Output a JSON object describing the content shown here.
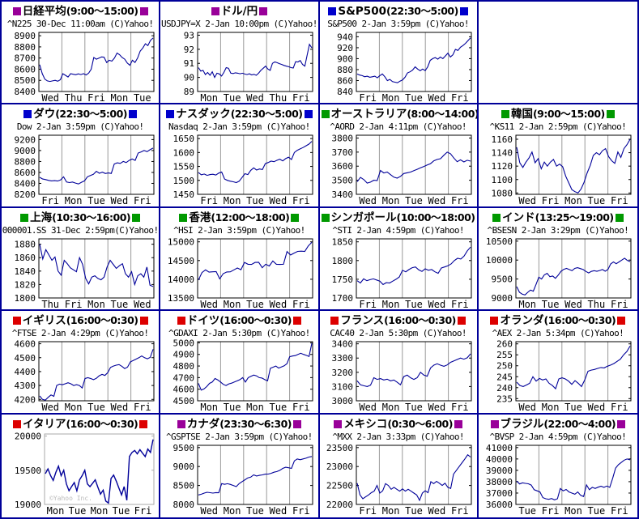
{
  "colors": {
    "purple": "#990099",
    "blue": "#0000CC",
    "green": "#009900",
    "red": "#DD0000",
    "line": "#000099",
    "grid": "#999999",
    "plot_border": "#000000",
    "plot_border_alt": "#AAAAAA",
    "frame": "#000099"
  },
  "watermark": "©Yahoo Inc.",
  "charts": [
    {
      "id": "n225",
      "title": "日経平均",
      "time_range": "(9:00〜15:00)",
      "marker": "purple",
      "subtitle": "^N225 30-Dec 11:00am (C)Yahoo!",
      "y_ticks": [
        8900,
        8800,
        8700,
        8600,
        8500,
        8400
      ],
      "x_labels": [
        "Wed",
        "Thu",
        "Fri",
        "Mon",
        "Tue"
      ],
      "ylim": [
        8400,
        8930
      ],
      "values": [
        8640,
        8560,
        8510,
        8495,
        8490,
        8495,
        8500,
        8492,
        8505,
        8560,
        8545,
        8530,
        8560,
        8555,
        8550,
        8558,
        8552,
        8560,
        8548,
        8565,
        8600,
        8705,
        8690,
        8700,
        8710,
        8708,
        8660,
        8680,
        8672,
        8700,
        8745,
        8730,
        8705,
        8690,
        8655,
        8635,
        8680,
        8660,
        8700,
        8762,
        8790,
        8828,
        8812,
        8858,
        8880
      ]
    },
    {
      "id": "usdjpy",
      "title": "ドル/円",
      "time_range": "",
      "marker": "purple",
      "subtitle": "USDJPY=X 2-Jan 10:00pm (C)Yahoo!",
      "y_ticks": [
        93,
        92,
        91,
        90,
        89
      ],
      "x_labels": [
        "Mon",
        "Tue",
        "Wed",
        "Thu",
        "Fri"
      ],
      "ylim": [
        89,
        93.2
      ],
      "values": [
        90.7,
        90.45,
        90.5,
        90.2,
        90.35,
        90.15,
        90.4,
        90.0,
        90.3,
        90.25,
        90.1,
        90.35,
        90.7,
        90.65,
        90.3,
        90.28,
        90.33,
        90.3,
        90.26,
        90.3,
        90.24,
        90.2,
        90.26,
        90.18,
        90.22,
        90.15,
        90.3,
        90.5,
        90.65,
        90.8,
        90.6,
        90.5,
        91.0,
        91.1,
        91.05,
        90.98,
        90.92,
        90.85,
        90.8,
        90.76,
        90.7,
        90.67,
        91.12,
        91.1,
        91.2,
        90.92,
        90.8,
        91.6,
        92.35,
        92.1
      ]
    },
    {
      "id": "sp500",
      "title": "S&P500",
      "time_range": "(22:30〜5:00)",
      "marker": "blue",
      "subtitle": "S&P500 2-Jan 3:59pm (C)Yahoo!",
      "y_ticks": [
        940,
        920,
        900,
        880,
        860,
        840
      ],
      "x_labels": [
        "Fri",
        "Mon",
        "Tue",
        "Wed",
        "Fri"
      ],
      "ylim": [
        840,
        948
      ],
      "values": [
        872,
        870,
        869,
        867,
        868,
        866,
        867,
        868,
        865,
        869,
        872,
        867,
        860,
        862,
        858,
        857,
        856,
        859,
        861,
        866,
        874,
        876,
        879,
        885,
        881,
        878,
        881,
        878,
        885,
        897,
        900,
        902,
        899,
        903,
        900,
        905,
        910,
        903,
        907,
        917,
        915,
        921,
        924,
        928,
        933,
        938
      ]
    },
    {
      "id": "empty",
      "empty": true
    },
    {
      "id": "dow",
      "title": "ダウ",
      "time_range": "(22:30〜5:00)",
      "marker": "blue",
      "subtitle": "Dow 2-Jan 3:59pm (C)Yahoo!",
      "y_ticks": [
        9200,
        9000,
        8800,
        8600,
        8400,
        8200
      ],
      "x_labels": [
        "Fri",
        "Mon",
        "Tue",
        "Wed",
        "Fri"
      ],
      "ylim": [
        8200,
        9280
      ],
      "values": [
        8510,
        8480,
        8470,
        8455,
        8445,
        8450,
        8442,
        8462,
        8520,
        8425,
        8415,
        8425,
        8405,
        8390,
        8420,
        8445,
        8520,
        8545,
        8565,
        8620,
        8585,
        8605,
        8580,
        8590,
        8582,
        8755,
        8775,
        8765,
        8800,
        8780,
        8820,
        8845,
        8820,
        8955,
        8975,
        9000,
        8980,
        9015,
        9045
      ]
    },
    {
      "id": "nasdaq",
      "title": "ナスダック",
      "time_range": "(22:30〜5:00)",
      "marker": "blue",
      "subtitle": "Nasdaq 2-Jan 3:59pm (C)Yahoo!",
      "y_ticks": [
        1650,
        1600,
        1550,
        1500,
        1450
      ],
      "x_labels": [
        "Fri",
        "Mon",
        "Tue",
        "Wed",
        "Fri"
      ],
      "ylim": [
        1450,
        1662
      ],
      "values": [
        1528,
        1520,
        1523,
        1518,
        1521,
        1522,
        1519,
        1526,
        1530,
        1505,
        1500,
        1497,
        1495,
        1492,
        1497,
        1510,
        1524,
        1521,
        1536,
        1545,
        1537,
        1541,
        1539,
        1560,
        1564,
        1569,
        1567,
        1572,
        1576,
        1570,
        1578,
        1583,
        1575,
        1600,
        1608,
        1613,
        1618,
        1624,
        1630,
        1640
      ]
    },
    {
      "id": "aord",
      "title": "オーストラリア",
      "time_range": "(8:00〜14:00)",
      "marker": "green",
      "subtitle": "^AORD 2-Jan 4:11pm (C)Yahoo!",
      "y_ticks": [
        3800,
        3700,
        3600,
        3500,
        3400
      ],
      "x_labels": [
        "Wed",
        "Mon",
        "Tue",
        "Wed",
        "Fri"
      ],
      "ylim": [
        3400,
        3820
      ],
      "values": [
        3490,
        3520,
        3505,
        3480,
        3487,
        3500,
        3498,
        3570,
        3552,
        3558,
        3540,
        3522,
        3515,
        3528,
        3548,
        3553,
        3558,
        3568,
        3578,
        3588,
        3598,
        3608,
        3618,
        3638,
        3648,
        3653,
        3678,
        3700,
        3688,
        3658,
        3632,
        3645,
        3630,
        3642,
        3636
      ]
    },
    {
      "id": "ks11",
      "title": "韓国",
      "time_range": "(9:00〜15:00)",
      "marker": "green",
      "subtitle": "^KS11 2-Jan 2:59pm (C)Yahoo!",
      "y_ticks": [
        1160,
        1140,
        1120,
        1100,
        1080
      ],
      "x_labels": [
        "Wed",
        "Fri",
        "Mon",
        "Tue",
        "Fri"
      ],
      "ylim": [
        1078,
        1166
      ],
      "values": [
        1148,
        1125,
        1118,
        1126,
        1132,
        1141,
        1125,
        1131,
        1116,
        1126,
        1120,
        1126,
        1130,
        1120,
        1123,
        1119,
        1105,
        1095,
        1085,
        1082,
        1080,
        1086,
        1096,
        1110,
        1121,
        1136,
        1140,
        1137,
        1143,
        1146,
        1134,
        1128,
        1124,
        1141,
        1133,
        1146,
        1152,
        1160
      ]
    },
    {
      "id": "shanghai",
      "title": "上海",
      "time_range": "(10:30〜16:00)",
      "marker": "green",
      "subtitle": "000001.SS 31-Dec 2:59pm(C)Yahoo!",
      "y_ticks": [
        1880,
        1860,
        1840,
        1820,
        1800
      ],
      "x_labels": [
        "Thu",
        "Fri",
        "Mon",
        "Tue",
        "Wed"
      ],
      "ylim": [
        1800,
        1888
      ],
      "values": [
        1880,
        1858,
        1872,
        1864,
        1856,
        1861,
        1840,
        1834,
        1856,
        1851,
        1845,
        1842,
        1839,
        1860,
        1850,
        1829,
        1821,
        1831,
        1833,
        1829,
        1827,
        1831,
        1846,
        1856,
        1850,
        1844,
        1848,
        1851,
        1836,
        1831,
        1839,
        1820,
        1833,
        1836,
        1831,
        1846,
        1819,
        1817
      ]
    },
    {
      "id": "hsi",
      "title": "香港",
      "time_range": "(12:00〜18:00)",
      "marker": "green",
      "subtitle": "^HSI 2-Jan 3:59pm (C)Yahoo!",
      "y_ticks": [
        15000,
        14500,
        14000,
        13500
      ],
      "x_labels": [
        "Wed",
        "Mon",
        "Tue",
        "Wed",
        "Fri"
      ],
      "ylim": [
        13500,
        15080
      ],
      "values": [
        13980,
        14180,
        14250,
        14190,
        14200,
        14205,
        14010,
        14150,
        14195,
        14200,
        14250,
        14300,
        14255,
        14450,
        14400,
        14395,
        14450,
        14455,
        14310,
        14400,
        14355,
        14490,
        14400,
        14395,
        14400,
        14740,
        14650,
        14700,
        14745,
        14750,
        14745,
        14890,
        14990
      ]
    },
    {
      "id": "sti",
      "title": "シンガポール",
      "time_range": "(10:00〜18:00)",
      "marker": "green",
      "subtitle": "^STI 2-Jan 4:59pm (C)Yahoo!",
      "y_ticks": [
        1850,
        1800,
        1750,
        1700
      ],
      "x_labels": [
        "Fri",
        "Mon",
        "Tue",
        "Wed",
        "Fri"
      ],
      "ylim": [
        1700,
        1858
      ],
      "values": [
        1746,
        1740,
        1751,
        1746,
        1749,
        1751,
        1748,
        1745,
        1736,
        1741,
        1740,
        1745,
        1750,
        1756,
        1774,
        1770,
        1776,
        1781,
        1783,
        1775,
        1771,
        1778,
        1774,
        1776,
        1770,
        1766,
        1780,
        1783,
        1786,
        1791,
        1800,
        1806,
        1804,
        1812,
        1826,
        1836
      ]
    },
    {
      "id": "bsesn",
      "title": "インド",
      "time_range": "(13:25〜19:00)",
      "marker": "green",
      "subtitle": "^BSESN 2-Jan 3:29pm (C)Yahoo!",
      "y_ticks": [
        10500,
        10000,
        9500,
        9000
      ],
      "x_labels": [
        "Mon",
        "Tue",
        "Wed",
        "Thu",
        "Fri"
      ],
      "ylim": [
        9000,
        10560
      ],
      "values": [
        9300,
        9150,
        9100,
        9080,
        9150,
        9210,
        9180,
        9360,
        9550,
        9500,
        9610,
        9650,
        9560,
        9580,
        9520,
        9600,
        9700,
        9755,
        9780,
        9750,
        9720,
        9780,
        9800,
        9775,
        9750,
        9700,
        9660,
        9700,
        9720,
        9705,
        9725,
        9750,
        9705,
        9755,
        9900,
        9950,
        9905,
        9950,
        10000,
        10050,
        9990,
        9960
      ]
    },
    {
      "id": "ftse",
      "title": "イギリス",
      "time_range": "(16:00〜0:30)",
      "marker": "red",
      "subtitle": "^FTSE 2-Jan 4:29pm (C)Yahoo!",
      "y_ticks": [
        4600,
        4500,
        4400,
        4300,
        4200
      ],
      "x_labels": [
        "Wed",
        "Mon",
        "Tue",
        "Wed",
        "Fri"
      ],
      "ylim": [
        4190,
        4615
      ],
      "values": [
        4225,
        4200,
        4195,
        4215,
        4232,
        4222,
        4300,
        4310,
        4305,
        4312,
        4320,
        4312,
        4300,
        4306,
        4300,
        4282,
        4350,
        4356,
        4350,
        4342,
        4352,
        4370,
        4380,
        4372,
        4392,
        4430,
        4440,
        4446,
        4450,
        4438,
        4422,
        4432,
        4470,
        4480,
        4490,
        4500,
        4512,
        4500,
        4492,
        4502,
        4560
      ]
    },
    {
      "id": "gdaxi",
      "title": "ドイツ",
      "time_range": "(16:00〜0:30)",
      "marker": "red",
      "subtitle": "^GDAXI 2-Jan 5:30pm (C)Yahoo!",
      "y_ticks": [
        5000,
        4900,
        4800,
        4700,
        4600,
        4500
      ],
      "x_labels": [
        "Mon",
        "Tue",
        "Mon",
        "Tue",
        "Fri"
      ],
      "ylim": [
        4500,
        5010
      ],
      "values": [
        4650,
        4592,
        4602,
        4622,
        4650,
        4662,
        4692,
        4680,
        4662,
        4642,
        4632,
        4646,
        4652,
        4662,
        4672,
        4682,
        4700,
        4662,
        4700,
        4712,
        4722,
        4715,
        4700,
        4696,
        4682,
        4672,
        4780,
        4790,
        4800,
        4782,
        4792,
        4802,
        4820,
        4880,
        4886,
        4890,
        4900,
        4910,
        4900,
        4892,
        4882,
        4995
      ]
    },
    {
      "id": "cac40",
      "title": "フランス",
      "time_range": "(16:00〜0:30)",
      "marker": "red",
      "subtitle": "CAC40 2-Jan 5:30pm (C)Yahoo!",
      "y_ticks": [
        3400,
        3300,
        3200,
        3100,
        3000
      ],
      "x_labels": [
        "Wed",
        "Mon",
        "Tue",
        "Wed",
        "Fri"
      ],
      "ylim": [
        3000,
        3415
      ],
      "values": [
        3140,
        3112,
        3106,
        3100,
        3110,
        3162,
        3150,
        3156,
        3146,
        3152,
        3140,
        3146,
        3130,
        3112,
        3170,
        3180,
        3162,
        3150,
        3162,
        3200,
        3180,
        3172,
        3230,
        3250,
        3260,
        3250,
        3242,
        3252,
        3270,
        3280,
        3290,
        3300,
        3292,
        3302,
        3330
      ]
    },
    {
      "id": "aex",
      "title": "オランダ",
      "time_range": "(16:00〜0:30)",
      "marker": "red",
      "subtitle": "^AEX 2-Jan 5:34pm (C)Yahoo!",
      "y_ticks": [
        260,
        255,
        250,
        245,
        240,
        235
      ],
      "x_labels": [
        "Wed",
        "Mon",
        "Tue",
        "Wed",
        "Fri"
      ],
      "ylim": [
        234,
        261
      ],
      "values": [
        242.5,
        241,
        240.5,
        241.2,
        242,
        245,
        243,
        244.2,
        243.5,
        244,
        242,
        241,
        239.5,
        244,
        244.5,
        244,
        243,
        241.5,
        243.2,
        242,
        240.5,
        243.5,
        247.5,
        248,
        248.3,
        248.8,
        249.2,
        249,
        249.8,
        250.3,
        251,
        252,
        253,
        255,
        256.5,
        259
      ]
    },
    {
      "id": "mib",
      "title": "イタリア",
      "time_range": "(16:00〜0:30)",
      "marker": "red",
      "subtitle": "",
      "style": "alt",
      "watermark": "©Yahoo Inc.",
      "y_ticks": [
        20000,
        19500,
        19000
      ],
      "x_labels": [
        "Mon",
        "Tue",
        "Mon",
        "Tue",
        "Fri"
      ],
      "ylim": [
        19000,
        20030
      ],
      "values": [
        19450,
        19520,
        19420,
        19350,
        19470,
        19560,
        19420,
        19500,
        19300,
        19200,
        19260,
        19320,
        19200,
        19360,
        19420,
        19500,
        19300,
        19260,
        19310,
        19360,
        19250,
        19150,
        19210,
        19050,
        19020,
        19380,
        19430,
        19340,
        19240,
        19140,
        19260,
        19060,
        19700,
        19760,
        19790,
        19740,
        19800,
        19750,
        19700,
        19810,
        19760,
        19950
      ]
    },
    {
      "id": "gsptse",
      "title": "カナダ",
      "time_range": "(23:30〜6:30)",
      "marker": "purple",
      "subtitle": "^GSPTSE 2-Jan 3:59pm (C)Yahoo!",
      "y_ticks": [
        9500,
        9000,
        8500,
        8000
      ],
      "x_labels": [
        "Wed",
        "Mon",
        "Tue",
        "Wed",
        "Fri"
      ],
      "ylim": [
        8000,
        9560
      ],
      "values": [
        8250,
        8270,
        8300,
        8320,
        8310,
        8300,
        8312,
        8308,
        8550,
        8530,
        8548,
        8528,
        8500,
        8470,
        8550,
        8600,
        8650,
        8700,
        8720,
        8780,
        8750,
        8768,
        8780,
        8800,
        8802,
        8820,
        8850,
        8868,
        8900,
        8950,
        8980,
        8968,
        8952,
        9150,
        9200,
        9180,
        9200,
        9220,
        9250,
        9265
      ]
    },
    {
      "id": "mxx",
      "title": "メキシコ",
      "time_range": "(0:30〜6:00)",
      "marker": "purple",
      "subtitle": "^MXX 2-Jan 3:33pm (C)Yahoo!",
      "y_ticks": [
        23500,
        23000,
        22500,
        22000
      ],
      "x_labels": [
        "Fri",
        "Mon",
        "Tue",
        "Wed",
        "Fri"
      ],
      "ylim": [
        22000,
        23560
      ],
      "values": [
        22560,
        22250,
        22150,
        22200,
        22250,
        22310,
        22350,
        22500,
        22300,
        22360,
        22550,
        22500,
        22400,
        22450,
        22400,
        22350,
        22410,
        22350,
        22400,
        22350,
        22300,
        22250,
        22110,
        22300,
        22360,
        22310,
        22600,
        22550,
        22610,
        22560,
        22500,
        22560,
        22450,
        22420,
        22800,
        22900,
        23000,
        23100,
        23200,
        23310,
        23250
      ]
    },
    {
      "id": "bvsp",
      "title": "ブラジル",
      "time_range": "(22:00〜4:00)",
      "marker": "purple",
      "subtitle": "^BVSP 2-Jan 4:59pm (C)Yahoo!",
      "y_ticks": [
        41000,
        40000,
        39000,
        38000,
        37000,
        36000
      ],
      "x_labels": [
        "Tue",
        "Fri",
        "Mon",
        "Tue",
        "Fri"
      ],
      "ylim": [
        36000,
        41200
      ],
      "values": [
        38050,
        37800,
        37900,
        37850,
        37820,
        37700,
        37300,
        37200,
        37100,
        36600,
        36500,
        36450,
        36520,
        36400,
        36500,
        37400,
        37200,
        37320,
        37100,
        37000,
        36900,
        37100,
        36800,
        36700,
        37720,
        37300,
        37500,
        37400,
        37520,
        37600,
        37500,
        37620,
        37500,
        38300,
        39200,
        39500,
        39700,
        39900,
        40000,
        39920
      ]
    }
  ],
  "chart_data": {
    "type": "line",
    "note": "20-panel world stock market mini-chart grid (Yahoo! Japan finance style); see charts[] for per-panel series, y_ticks, x_labels and ylim."
  }
}
